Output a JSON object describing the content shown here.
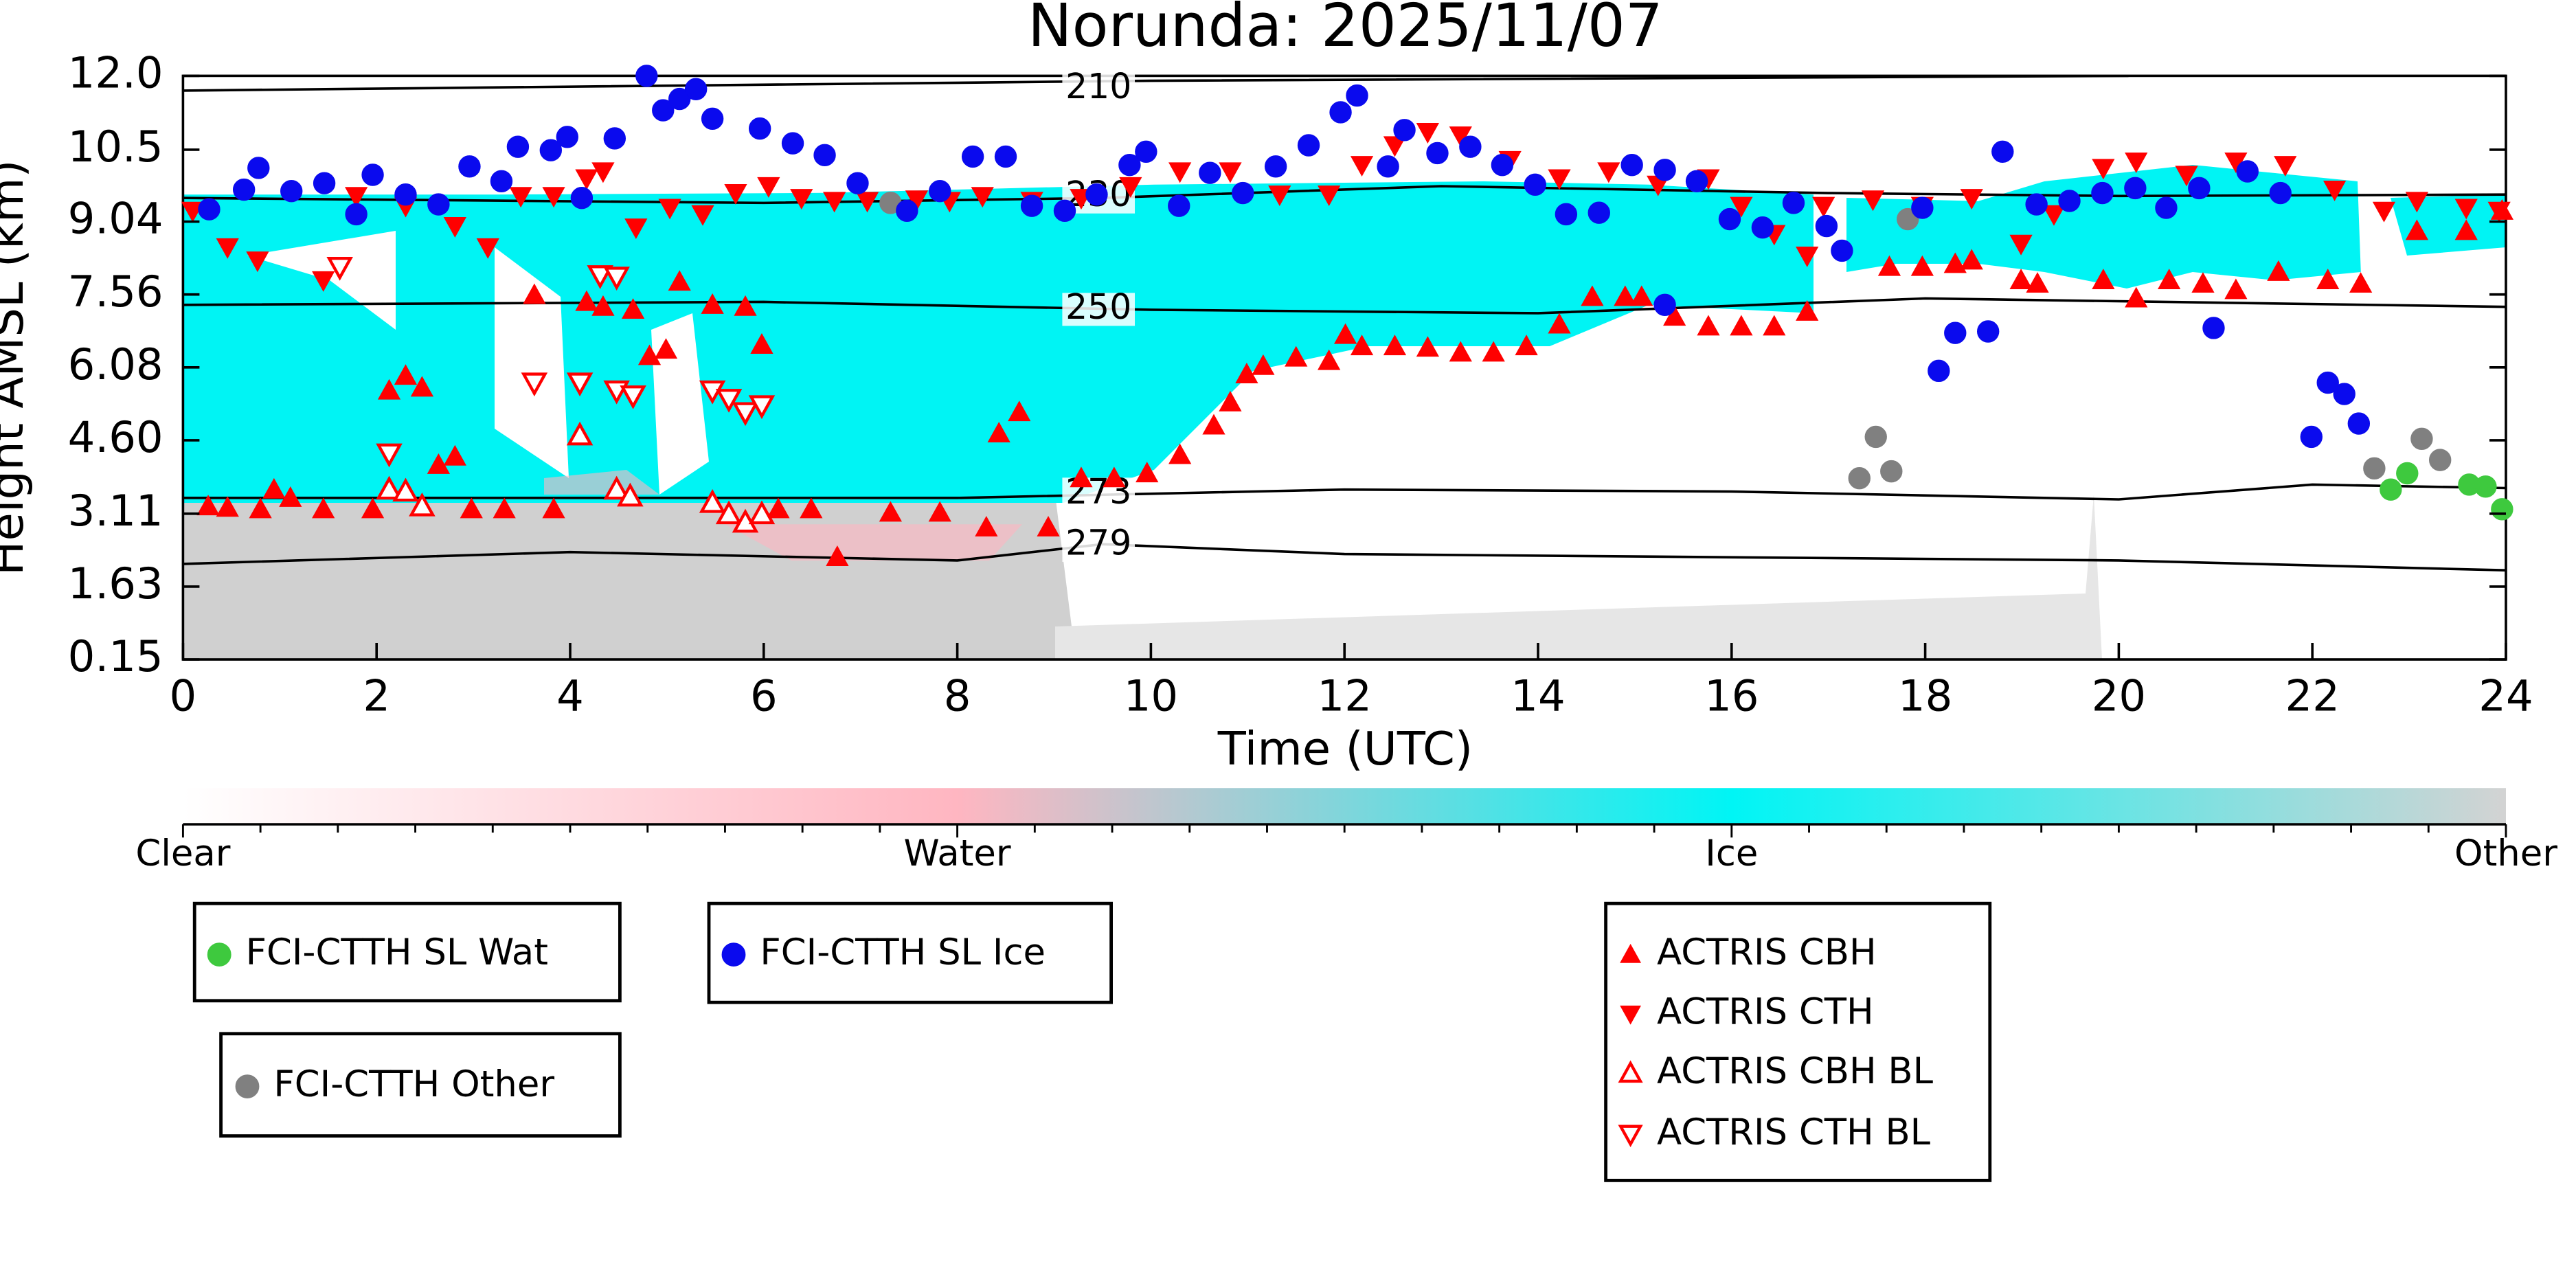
{
  "chart_data": {
    "type": "scatter",
    "title": "Norunda: 2025/11/07",
    "x_label": "Time (UTC)",
    "y_label": "Height AMSL (km)",
    "xlim": [
      0,
      24
    ],
    "xticks": [
      0,
      2,
      4,
      6,
      8,
      10,
      12,
      14,
      16,
      18,
      20,
      22,
      24
    ],
    "ylim": [
      0.15,
      12.0
    ],
    "yticks": [
      0.15,
      1.63,
      3.11,
      {
        "value": 4.6,
        "label": "4.60"
      },
      6.08,
      7.56,
      9.04,
      10.5,
      {
        "value": 12,
        "label": "12.0"
      }
    ],
    "grid": false,
    "contours": [
      {
        "level": 210,
        "x": [
          0,
          10,
          20.1
        ],
        "y": [
          11.7,
          11.9,
          12.0
        ]
      },
      {
        "level": 230,
        "x": [
          0,
          6,
          9.5,
          13,
          17,
          20,
          24
        ],
        "y": [
          9.52,
          9.42,
          9.52,
          9.76,
          9.62,
          9.56,
          9.59
        ]
      },
      {
        "level": 250,
        "x": [
          0,
          6,
          10,
          14,
          18,
          24
        ],
        "y": [
          7.35,
          7.41,
          7.25,
          7.18,
          7.48,
          7.31
        ]
      },
      {
        "level": 273,
        "x": [
          0,
          8,
          12,
          16,
          20,
          22,
          24
        ],
        "y": [
          3.43,
          3.43,
          3.6,
          3.56,
          3.4,
          3.7,
          3.63
        ]
      },
      {
        "level": 279,
        "x": [
          0,
          4,
          8,
          9.5,
          12,
          20,
          24
        ],
        "y": [
          2.09,
          2.33,
          2.16,
          2.49,
          2.29,
          2.16,
          1.96
        ]
      }
    ],
    "colorbar": {
      "labels": [
        "Clear",
        "Water",
        "Ice",
        "Other"
      ],
      "colors": [
        "#ffffff",
        "#ffb6c1",
        "#00f5f5",
        "#d3d3d3"
      ]
    },
    "series": [
      {
        "name": "FCI-CTTH SL Wat",
        "color": "#3ec93e",
        "marker": "circle",
        "filled": true,
        "x": [
          22.81,
          22.98,
          23.62,
          23.79,
          23.96
        ],
        "y": [
          3.6,
          3.93,
          3.7,
          3.66,
          3.2
        ]
      },
      {
        "name": "FCI-CTTH SL Ice",
        "color": "#0a0aee",
        "marker": "circle",
        "filled": true,
        "x": [
          0.27,
          0.63,
          0.78,
          1.12,
          1.46,
          1.79,
          1.96,
          2.3,
          2.64,
          2.96,
          3.29,
          3.46,
          3.8,
          3.97,
          4.12,
          4.46,
          4.79,
          4.96,
          5.13,
          5.3,
          5.47,
          5.96,
          6.3,
          6.63,
          6.97,
          7.48,
          7.82,
          8.16,
          8.5,
          8.77,
          9.11,
          9.44,
          9.78,
          9.95,
          10.29,
          10.61,
          10.95,
          11.29,
          11.63,
          11.96,
          12.13,
          12.45,
          12.62,
          12.96,
          13.3,
          13.63,
          13.97,
          14.29,
          14.63,
          14.97,
          15.31,
          15.31,
          15.64,
          15.98,
          16.32,
          16.64,
          16.98,
          17.14,
          17.97,
          18.14,
          18.31,
          18.65,
          18.8,
          19.15,
          19.49,
          19.83,
          20.17,
          20.49,
          20.83,
          20.98,
          21.33,
          21.67,
          21.99,
          22.16,
          22.33,
          22.48
        ],
        "y": [
          9.29,
          9.69,
          10.13,
          9.66,
          9.82,
          9.19,
          9.99,
          9.59,
          9.39,
          10.16,
          9.86,
          10.56,
          10.49,
          10.76,
          9.52,
          10.73,
          12.0,
          11.3,
          11.53,
          11.73,
          11.13,
          10.93,
          10.63,
          10.39,
          9.82,
          9.26,
          9.66,
          10.36,
          10.36,
          9.36,
          9.26,
          9.59,
          10.19,
          10.46,
          9.36,
          10.03,
          9.62,
          10.16,
          10.59,
          11.26,
          11.6,
          10.16,
          10.9,
          10.43,
          10.56,
          10.19,
          9.79,
          9.19,
          9.22,
          10.19,
          10.09,
          7.35,
          9.86,
          9.09,
          8.92,
          9.42,
          8.95,
          8.45,
          9.32,
          6.01,
          6.78,
          6.81,
          10.46,
          9.39,
          9.46,
          9.62,
          9.72,
          9.32,
          9.72,
          6.88,
          10.06,
          9.62,
          4.67,
          5.77,
          5.54,
          4.94
        ]
      },
      {
        "name": "FCI-CTTH Other",
        "color": "#808080",
        "marker": "circle",
        "filled": true,
        "x": [
          7.31,
          17.82,
          17.32,
          17.49,
          17.65,
          22.64,
          23.13,
          23.32
        ],
        "y": [
          9.42,
          9.09,
          3.83,
          4.67,
          3.97,
          4.03,
          4.63,
          4.2
        ]
      },
      {
        "name": "ACTRIS CBH",
        "color": "#ff0000",
        "marker": "triangle-up",
        "filled": true,
        "x": [
          0.26,
          0.46,
          0.8,
          0.94,
          1.11,
          1.45,
          1.96,
          2.13,
          2.3,
          2.47,
          2.64,
          2.81,
          2.98,
          3.32,
          3.63,
          3.83,
          4.17,
          4.34,
          4.65,
          4.82,
          4.99,
          5.13,
          5.47,
          5.81,
          5.98,
          6.15,
          6.49,
          6.76,
          7.31,
          7.82,
          8.3,
          8.43,
          8.64,
          8.94,
          9.28,
          9.62,
          9.96,
          10.3,
          10.65,
          10.82,
          10.99,
          11.16,
          11.5,
          11.84,
          12.01,
          12.18,
          12.52,
          12.86,
          13.2,
          13.54,
          13.88,
          14.22,
          14.56,
          14.9,
          15.07,
          15.41,
          15.76,
          16.1,
          16.44,
          16.78,
          17.63,
          17.97,
          18.31,
          18.48,
          18.99,
          19.16,
          19.84,
          20.18,
          20.52,
          20.87,
          21.21,
          21.65,
          22.16,
          22.5,
          23.08,
          23.59,
          23.96
        ],
        "y": [
          3.26,
          3.23,
          3.2,
          3.6,
          3.43,
          3.2,
          3.2,
          5.61,
          5.91,
          5.67,
          4.1,
          4.27,
          3.2,
          3.2,
          7.55,
          3.2,
          7.41,
          7.31,
          7.25,
          6.31,
          6.44,
          7.82,
          7.35,
          7.31,
          6.54,
          3.2,
          3.2,
          2.23,
          3.13,
          3.13,
          2.83,
          4.74,
          5.17,
          2.83,
          3.83,
          3.83,
          3.93,
          4.3,
          4.9,
          5.37,
          5.94,
          6.11,
          6.28,
          6.21,
          6.74,
          6.51,
          6.51,
          6.48,
          6.38,
          6.38,
          6.51,
          6.95,
          7.51,
          7.51,
          7.51,
          7.11,
          6.91,
          6.91,
          6.91,
          7.21,
          8.12,
          8.12,
          8.18,
          8.25,
          7.85,
          7.78,
          7.85,
          7.48,
          7.85,
          7.78,
          7.65,
          8.02,
          7.85,
          7.78,
          8.85,
          8.85,
          9.26
        ]
      },
      {
        "name": "ACTRIS CTH",
        "color": "#ff0000",
        "marker": "triangle-down",
        "filled": true,
        "x": [
          0.1,
          0.46,
          0.77,
          1.45,
          1.79,
          2.3,
          2.81,
          3.15,
          3.49,
          3.83,
          4.17,
          4.34,
          4.68,
          5.03,
          5.37,
          5.71,
          6.05,
          6.39,
          6.73,
          7.07,
          7.58,
          7.92,
          8.26,
          8.77,
          9.28,
          9.79,
          10.3,
          10.82,
          11.33,
          11.84,
          12.18,
          12.52,
          12.86,
          13.2,
          13.71,
          14.22,
          14.73,
          15.24,
          15.76,
          16.1,
          16.44,
          16.78,
          16.95,
          17.46,
          17.97,
          18.48,
          18.99,
          19.33,
          19.84,
          20.18,
          20.7,
          21.21,
          21.72,
          22.23,
          22.74,
          23.08,
          23.59,
          23.93
        ],
        "y": [
          9.26,
          8.52,
          8.25,
          7.85,
          9.56,
          9.36,
          8.95,
          8.52,
          9.56,
          9.56,
          9.92,
          10.06,
          8.92,
          9.32,
          9.19,
          9.62,
          9.76,
          9.52,
          9.46,
          9.46,
          9.49,
          9.46,
          9.56,
          9.46,
          9.52,
          9.76,
          10.06,
          10.06,
          9.59,
          9.59,
          10.19,
          10.59,
          10.86,
          10.79,
          10.29,
          9.92,
          10.06,
          9.79,
          9.92,
          9.36,
          8.79,
          8.35,
          9.36,
          9.49,
          9.36,
          9.52,
          8.59,
          9.19,
          10.13,
          10.26,
          9.99,
          10.26,
          10.19,
          9.69,
          9.26,
          9.46,
          9.32,
          9.26
        ]
      },
      {
        "name": "ACTRIS CBH BL",
        "color": "#ff0000",
        "marker": "triangle-up",
        "filled": false,
        "x": [
          2.13,
          2.3,
          2.47,
          4.1,
          4.48,
          4.62,
          5.47,
          5.64,
          5.81,
          5.98
        ],
        "y": [
          3.6,
          3.56,
          3.26,
          4.7,
          3.6,
          3.46,
          3.33,
          3.1,
          2.93,
          3.1
        ]
      },
      {
        "name": "ACTRIS CTH BL",
        "color": "#ff0000",
        "marker": "triangle-down",
        "filled": false,
        "x": [
          1.62,
          2.13,
          3.63,
          4.1,
          4.31,
          4.48,
          4.48,
          4.65,
          5.47,
          5.64,
          5.81,
          5.98
        ],
        "y": [
          8.12,
          4.33,
          5.77,
          5.77,
          7.95,
          7.92,
          5.61,
          5.51,
          5.61,
          5.44,
          5.17,
          5.31
        ]
      }
    ]
  }
}
